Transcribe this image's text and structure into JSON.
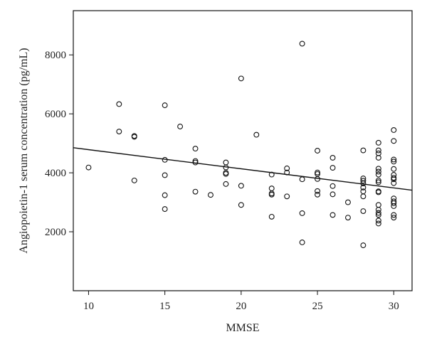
{
  "chart_data": {
    "type": "scatter",
    "xlabel": "MMSE",
    "ylabel": "Angiopoietin-1 serum concentration (pg/mL)",
    "xlim": [
      9,
      31.2
    ],
    "ylim": [
      0,
      9500
    ],
    "xticks": [
      10,
      15,
      20,
      25,
      30
    ],
    "yticks": [
      2000,
      4000,
      6000,
      8000
    ],
    "grid": false,
    "marker": "open-circle",
    "points": [
      {
        "x": 10,
        "y": 4180
      },
      {
        "x": 12,
        "y": 6330
      },
      {
        "x": 12,
        "y": 5400
      },
      {
        "x": 13,
        "y": 5250
      },
      {
        "x": 13,
        "y": 5220
      },
      {
        "x": 13,
        "y": 3740
      },
      {
        "x": 15,
        "y": 6290
      },
      {
        "x": 15,
        "y": 4440
      },
      {
        "x": 15,
        "y": 3920
      },
      {
        "x": 15,
        "y": 3240
      },
      {
        "x": 15,
        "y": 2770
      },
      {
        "x": 16,
        "y": 5570
      },
      {
        "x": 17,
        "y": 4820
      },
      {
        "x": 17,
        "y": 4400
      },
      {
        "x": 17,
        "y": 4350
      },
      {
        "x": 17,
        "y": 3360
      },
      {
        "x": 18,
        "y": 3250
      },
      {
        "x": 19,
        "y": 4350
      },
      {
        "x": 19,
        "y": 4180
      },
      {
        "x": 19,
        "y": 4000
      },
      {
        "x": 19,
        "y": 3960
      },
      {
        "x": 19,
        "y": 3620
      },
      {
        "x": 20,
        "y": 7200
      },
      {
        "x": 20,
        "y": 3560
      },
      {
        "x": 20,
        "y": 2910
      },
      {
        "x": 21,
        "y": 5290
      },
      {
        "x": 22,
        "y": 3940
      },
      {
        "x": 22,
        "y": 3470
      },
      {
        "x": 22,
        "y": 3300
      },
      {
        "x": 22,
        "y": 3260
      },
      {
        "x": 22,
        "y": 2510
      },
      {
        "x": 23,
        "y": 4150
      },
      {
        "x": 23,
        "y": 4010
      },
      {
        "x": 23,
        "y": 3200
      },
      {
        "x": 24,
        "y": 8380
      },
      {
        "x": 24,
        "y": 3780
      },
      {
        "x": 24,
        "y": 2630
      },
      {
        "x": 24,
        "y": 1640
      },
      {
        "x": 25,
        "y": 4750
      },
      {
        "x": 25,
        "y": 4010
      },
      {
        "x": 25,
        "y": 3960
      },
      {
        "x": 25,
        "y": 3790
      },
      {
        "x": 25,
        "y": 3380
      },
      {
        "x": 25,
        "y": 3260
      },
      {
        "x": 26,
        "y": 4510
      },
      {
        "x": 26,
        "y": 4170
      },
      {
        "x": 26,
        "y": 3550
      },
      {
        "x": 26,
        "y": 3270
      },
      {
        "x": 26,
        "y": 2570
      },
      {
        "x": 27,
        "y": 3000
      },
      {
        "x": 27,
        "y": 2480
      },
      {
        "x": 28,
        "y": 4760
      },
      {
        "x": 28,
        "y": 3810
      },
      {
        "x": 28,
        "y": 3730
      },
      {
        "x": 28,
        "y": 3640
      },
      {
        "x": 28,
        "y": 3500
      },
      {
        "x": 28,
        "y": 3370
      },
      {
        "x": 28,
        "y": 3200
      },
      {
        "x": 28,
        "y": 2700
      },
      {
        "x": 28,
        "y": 1540
      },
      {
        "x": 29,
        "y": 5020
      },
      {
        "x": 29,
        "y": 4760
      },
      {
        "x": 29,
        "y": 4660
      },
      {
        "x": 29,
        "y": 4510
      },
      {
        "x": 29,
        "y": 4140
      },
      {
        "x": 29,
        "y": 4040
      },
      {
        "x": 29,
        "y": 3940
      },
      {
        "x": 29,
        "y": 3740
      },
      {
        "x": 29,
        "y": 3680
      },
      {
        "x": 29,
        "y": 3370
      },
      {
        "x": 29,
        "y": 3340
      },
      {
        "x": 29,
        "y": 2910
      },
      {
        "x": 29,
        "y": 2750
      },
      {
        "x": 29,
        "y": 2640
      },
      {
        "x": 29,
        "y": 2570
      },
      {
        "x": 29,
        "y": 2380
      },
      {
        "x": 29,
        "y": 2280
      },
      {
        "x": 30,
        "y": 5450
      },
      {
        "x": 30,
        "y": 5080
      },
      {
        "x": 30,
        "y": 4450
      },
      {
        "x": 30,
        "y": 4380
      },
      {
        "x": 30,
        "y": 4130
      },
      {
        "x": 30,
        "y": 3930
      },
      {
        "x": 30,
        "y": 3830
      },
      {
        "x": 30,
        "y": 3780
      },
      {
        "x": 30,
        "y": 3650
      },
      {
        "x": 30,
        "y": 3130
      },
      {
        "x": 30,
        "y": 3030
      },
      {
        "x": 30,
        "y": 2970
      },
      {
        "x": 30,
        "y": 2870
      },
      {
        "x": 30,
        "y": 2570
      },
      {
        "x": 30,
        "y": 2480
      }
    ],
    "regression_line": {
      "x": [
        9,
        31.2
      ],
      "y": [
        4850,
        3410
      ]
    }
  }
}
